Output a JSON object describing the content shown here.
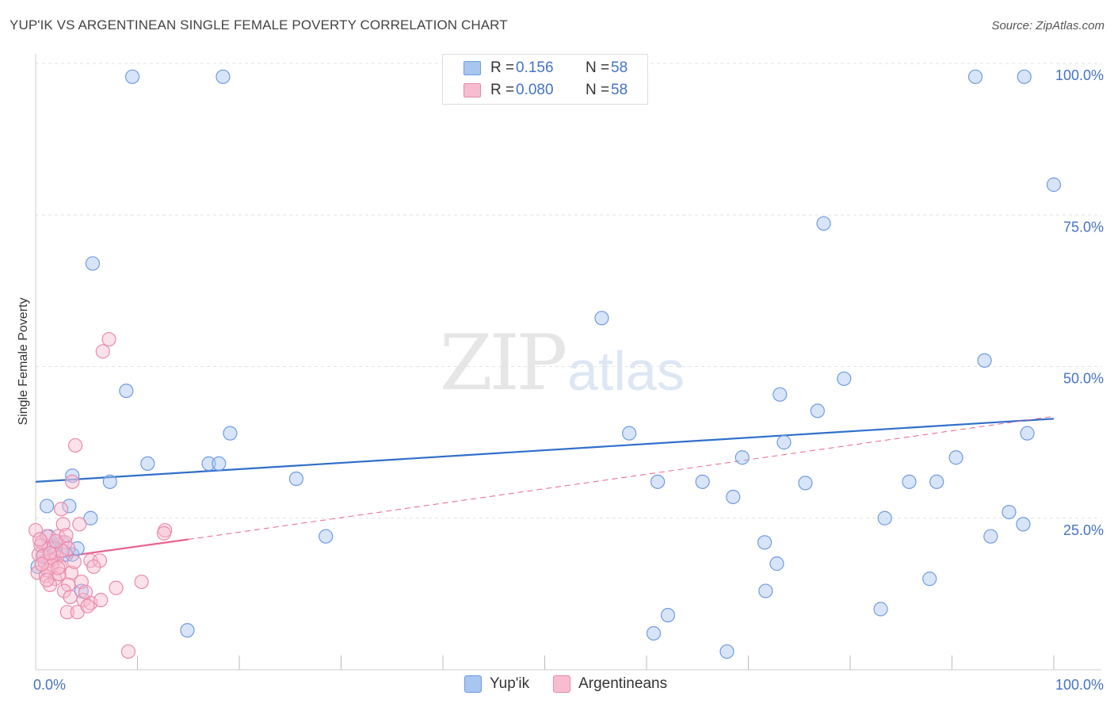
{
  "title": "YUP'IK VS ARGENTINEAN SINGLE FEMALE POVERTY CORRELATION CHART",
  "source": "Source: ZipAtlas.com",
  "watermark": {
    "zip": "ZIP",
    "atlas": "atlas"
  },
  "legend": {
    "r_label": "R =",
    "n_label": "N =",
    "series": [
      {
        "name": "Yup'ik",
        "r": "0.156",
        "n": "58",
        "fill": "#a8c6f0",
        "stroke": "#6f9be0"
      },
      {
        "name": "Argentineans",
        "r": "0.080",
        "n": "58",
        "fill": "#f7bcd0",
        "stroke": "#ea8aaa"
      }
    ]
  },
  "colors": {
    "blue_line": "#2f6fc9",
    "pink_line": "#e8648e",
    "tick_text": "#4472c4",
    "grid": "#e3e3e3"
  },
  "chart_data": {
    "type": "scatter",
    "title": "YUP'IK VS ARGENTINEAN SINGLE FEMALE POVERTY CORRELATION CHART",
    "xlabel": "",
    "ylabel": "Single Female Poverty",
    "xlim": [
      0,
      100
    ],
    "ylim": [
      0,
      100
    ],
    "x_tick_labels": [
      "0.0%",
      "100.0%"
    ],
    "y_tick_labels": [
      "25.0%",
      "50.0%",
      "75.0%",
      "100.0%"
    ],
    "y_tick_values": [
      25,
      50,
      75,
      100
    ],
    "legend_position": "top-center",
    "series": [
      {
        "name": "Yup'ik",
        "points": [
          [
            9.5,
            97.8
          ],
          [
            18.4,
            97.8
          ],
          [
            92.3,
            97.8
          ],
          [
            97.1,
            97.8
          ],
          [
            100,
            80
          ],
          [
            77.4,
            73.6
          ],
          [
            5.6,
            67
          ],
          [
            55.6,
            58
          ],
          [
            93.2,
            51
          ],
          [
            79.4,
            48
          ],
          [
            8.9,
            46
          ],
          [
            73.1,
            45.4
          ],
          [
            76.8,
            42.7
          ],
          [
            19.1,
            39
          ],
          [
            58.3,
            39
          ],
          [
            97.4,
            39
          ],
          [
            11,
            34
          ],
          [
            17,
            34
          ],
          [
            18,
            34
          ],
          [
            73.5,
            37.5
          ],
          [
            69.4,
            35
          ],
          [
            90.4,
            35
          ],
          [
            75.6,
            30.8
          ],
          [
            3.6,
            32
          ],
          [
            7.3,
            31
          ],
          [
            25.6,
            31.5
          ],
          [
            61.1,
            31
          ],
          [
            65.5,
            31
          ],
          [
            85.8,
            31
          ],
          [
            88.5,
            31
          ],
          [
            68.5,
            28.5
          ],
          [
            1.1,
            27
          ],
          [
            3.3,
            27
          ],
          [
            5.4,
            25
          ],
          [
            83.4,
            25
          ],
          [
            95.6,
            26
          ],
          [
            1.3,
            22
          ],
          [
            2.6,
            21
          ],
          [
            3.6,
            19
          ],
          [
            28.5,
            22
          ],
          [
            71.6,
            21
          ],
          [
            4.1,
            20
          ],
          [
            72.8,
            17.5
          ],
          [
            0.2,
            17
          ],
          [
            93.8,
            22
          ],
          [
            4.5,
            13
          ],
          [
            71.7,
            13
          ],
          [
            87.8,
            15
          ],
          [
            62.1,
            9
          ],
          [
            14.9,
            6.5
          ],
          [
            60.7,
            6
          ],
          [
            67.9,
            3
          ],
          [
            83,
            10
          ],
          [
            2,
            20
          ],
          [
            3,
            19
          ],
          [
            97,
            24
          ],
          [
            1.7,
            20.5
          ],
          [
            0.8,
            19
          ]
        ]
      },
      {
        "name": "Argentineans",
        "points": [
          [
            7.2,
            54.5
          ],
          [
            6.6,
            52.5
          ],
          [
            3.9,
            37
          ],
          [
            3.6,
            31
          ],
          [
            2.5,
            26.5
          ],
          [
            2.7,
            24
          ],
          [
            4.3,
            24
          ],
          [
            0,
            23
          ],
          [
            12.7,
            23
          ],
          [
            12.6,
            22.5
          ],
          [
            0.6,
            21
          ],
          [
            1.1,
            22
          ],
          [
            2.2,
            22
          ],
          [
            2.9,
            21
          ],
          [
            0.3,
            19
          ],
          [
            1.3,
            20
          ],
          [
            1.8,
            19
          ],
          [
            2.1,
            18.5
          ],
          [
            3.2,
            20
          ],
          [
            0.9,
            17.8
          ],
          [
            1.5,
            18
          ],
          [
            2.4,
            17
          ],
          [
            5.4,
            18
          ],
          [
            6.3,
            18
          ],
          [
            5.7,
            17
          ],
          [
            0.2,
            16
          ],
          [
            1,
            15.5
          ],
          [
            1.9,
            15
          ],
          [
            3.5,
            16
          ],
          [
            1.4,
            14
          ],
          [
            3.2,
            14
          ],
          [
            4.5,
            14.5
          ],
          [
            2.8,
            13
          ],
          [
            3.4,
            12
          ],
          [
            7.9,
            13.5
          ],
          [
            10.4,
            14.5
          ],
          [
            4.7,
            11.5
          ],
          [
            5.4,
            11
          ],
          [
            6.4,
            11.5
          ],
          [
            3.1,
            9.5
          ],
          [
            4.1,
            9.5
          ],
          [
            9.1,
            3
          ],
          [
            0.5,
            20.5
          ],
          [
            1.6,
            17.2
          ],
          [
            2.3,
            15.8
          ],
          [
            0.7,
            18.7
          ],
          [
            2.6,
            19.6
          ],
          [
            1.2,
            16.4
          ],
          [
            3.8,
            17.8
          ],
          [
            0.4,
            21.5
          ],
          [
            2,
            21.2
          ],
          [
            4.9,
            12.8
          ],
          [
            1.1,
            14.8
          ],
          [
            3,
            22.2
          ],
          [
            2.2,
            16.8
          ],
          [
            1.4,
            19.2
          ],
          [
            5.1,
            10.5
          ],
          [
            0.6,
            17.4
          ]
        ]
      }
    ],
    "trend_lines": [
      {
        "series": "Yup'ik",
        "x": [
          0,
          100
        ],
        "y": [
          31,
          41.4
        ],
        "style": "solid"
      },
      {
        "series": "Argentineans",
        "x": [
          0,
          15
        ],
        "y": [
          18,
          21.5
        ],
        "style": "solid"
      },
      {
        "series": "Argentineans",
        "x": [
          15,
          100
        ],
        "y": [
          21.5,
          41.8
        ],
        "style": "dashed"
      }
    ]
  }
}
